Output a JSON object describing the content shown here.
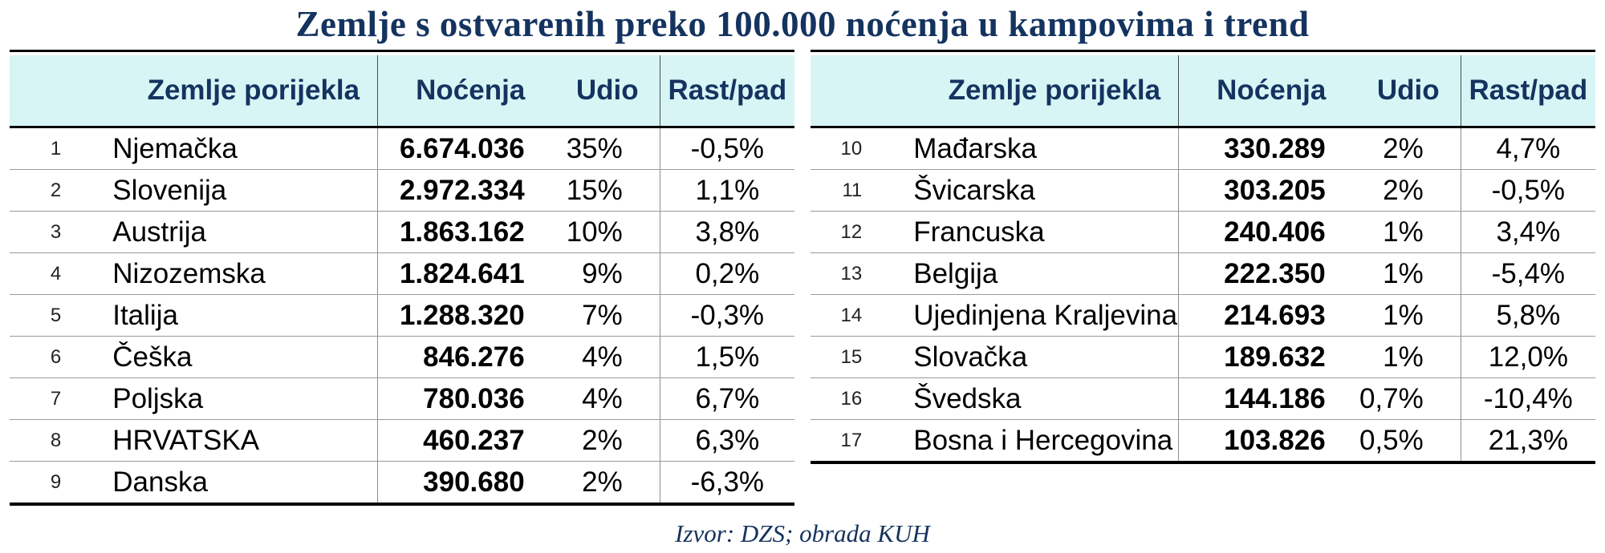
{
  "title": "Zemlje s ostvarenih preko 100.000 noćenja u kampovima i trend",
  "source": "Izvor: DZS; obrada KUH",
  "colors": {
    "title_text": "#14335f",
    "header_background": "#d8f5f6",
    "header_text": "#14335f",
    "table_border": "#000000",
    "row_separator": "#9a9a9a"
  },
  "tables": [
    {
      "headers": {
        "country": "Zemlje porijekla",
        "nights": "Noćenja",
        "share": "Udio",
        "trend": "Rast/pad"
      },
      "rows": [
        {
          "rank": "1",
          "country": "Njemačka",
          "nights": "6.674.036",
          "share": "35%",
          "trend": "-0,5%"
        },
        {
          "rank": "2",
          "country": "Slovenija",
          "nights": "2.972.334",
          "share": "15%",
          "trend": "1,1%"
        },
        {
          "rank": "3",
          "country": "Austrija",
          "nights": "1.863.162",
          "share": "10%",
          "trend": "3,8%"
        },
        {
          "rank": "4",
          "country": "Nizozemska",
          "nights": "1.824.641",
          "share": "9%",
          "trend": "0,2%"
        },
        {
          "rank": "5",
          "country": "Italija",
          "nights": "1.288.320",
          "share": "7%",
          "trend": "-0,3%"
        },
        {
          "rank": "6",
          "country": "Češka",
          "nights": "846.276",
          "share": "4%",
          "trend": "1,5%"
        },
        {
          "rank": "7",
          "country": "Poljska",
          "nights": "780.036",
          "share": "4%",
          "trend": "6,7%"
        },
        {
          "rank": "8",
          "country": "HRVATSKA",
          "nights": "460.237",
          "share": "2%",
          "trend": "6,3%"
        },
        {
          "rank": "9",
          "country": "Danska",
          "nights": "390.680",
          "share": "2%",
          "trend": "-6,3%"
        }
      ]
    },
    {
      "headers": {
        "country": "Zemlje porijekla",
        "nights": "Noćenja",
        "share": "Udio",
        "trend": "Rast/pad"
      },
      "rows": [
        {
          "rank": "10",
          "country": "Mađarska",
          "nights": "330.289",
          "share": "2%",
          "trend": "4,7%"
        },
        {
          "rank": "11",
          "country": "Švicarska",
          "nights": "303.205",
          "share": "2%",
          "trend": "-0,5%"
        },
        {
          "rank": "12",
          "country": "Francuska",
          "nights": "240.406",
          "share": "1%",
          "trend": "3,4%"
        },
        {
          "rank": "13",
          "country": "Belgija",
          "nights": "222.350",
          "share": "1%",
          "trend": "-5,4%"
        },
        {
          "rank": "14",
          "country": "Ujedinjena Kraljevina",
          "nights": "214.693",
          "share": "1%",
          "trend": "5,8%"
        },
        {
          "rank": "15",
          "country": "Slovačka",
          "nights": "189.632",
          "share": "1%",
          "trend": "12,0%"
        },
        {
          "rank": "16",
          "country": "Švedska",
          "nights": "144.186",
          "share": "0,7%",
          "trend": "-10,4%"
        },
        {
          "rank": "17",
          "country": "Bosna i Hercegovina",
          "nights": "103.826",
          "share": "0,5%",
          "trend": "21,3%"
        }
      ]
    }
  ]
}
